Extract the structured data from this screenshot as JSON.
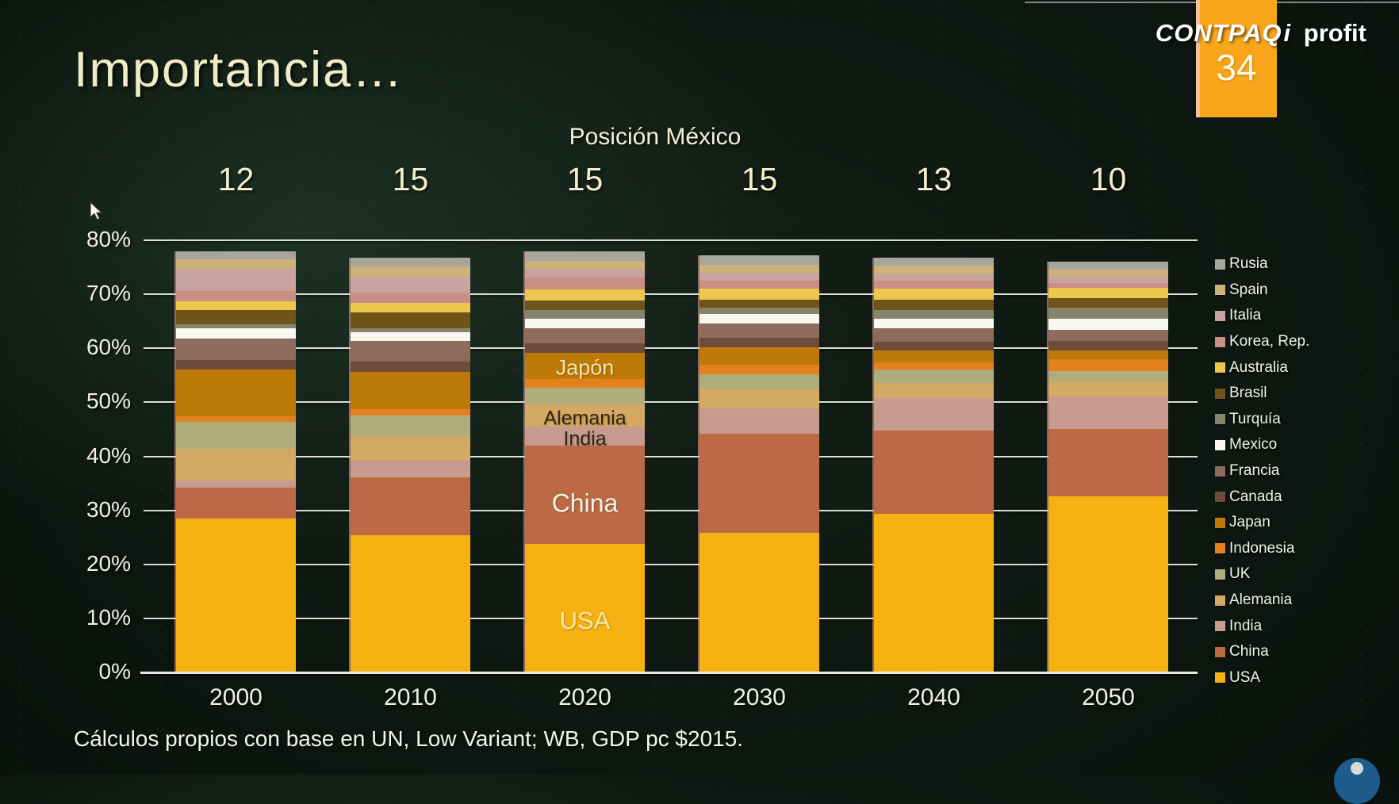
{
  "slide": {
    "title": "Importancia…",
    "footer": "Cálculos propios con base en UN, Low Variant; WB, GDP pc $2015."
  },
  "logo": {
    "brand": "CONTPAQ",
    "brand_i": "i",
    "suffix": "profit",
    "badge": "34",
    "badge_color": "#F9A61C"
  },
  "chart_data": {
    "type": "bar",
    "stacked": true,
    "title": "Posición México",
    "categories": [
      "2000",
      "2010",
      "2020",
      "2030",
      "2040",
      "2050"
    ],
    "position_labels": [
      "12",
      "15",
      "15",
      "15",
      "13",
      "10"
    ],
    "unit": "percent of world GDP",
    "ylim": [
      0,
      80
    ],
    "yticks": [
      "0%",
      "10%",
      "20%",
      "30%",
      "40%",
      "50%",
      "60%",
      "70%",
      "80%"
    ],
    "grid": true,
    "legend_position": "right",
    "legend_order_top_to_bottom": [
      "Rusia",
      "Spain",
      "Italia",
      "Korea, Rep.",
      "Australia",
      "Brasil",
      "Turquía",
      "Mexico",
      "Francia",
      "Canada",
      "Japan",
      "Indonesia",
      "UK",
      "Alemania",
      "India",
      "China",
      "USA"
    ],
    "series_bottom_to_top": [
      {
        "name": "USA",
        "color": "#F7B011",
        "values": [
          28.4,
          25.2,
          23.7,
          25.7,
          29.2,
          32.4
        ]
      },
      {
        "name": "China",
        "color": "#BC6A45",
        "values": [
          5.6,
          10.8,
          18.2,
          18.4,
          15.4,
          12.5
        ]
      },
      {
        "name": "India",
        "color": "#C79B8E",
        "values": [
          1.4,
          3.2,
          3.4,
          4.7,
          6.1,
          6.0
        ]
      },
      {
        "name": "Alemania",
        "color": "#D4A963",
        "values": [
          5.9,
          4.4,
          4.1,
          3.4,
          2.7,
          2.8
        ]
      },
      {
        "name": "UK",
        "color": "#B0AD7C",
        "values": [
          5.0,
          3.8,
          3.2,
          2.9,
          2.5,
          2.0
        ]
      },
      {
        "name": "Indonesia",
        "color": "#E2811E",
        "values": [
          0.9,
          1.2,
          1.5,
          1.7,
          1.4,
          2.2
        ]
      },
      {
        "name": "Japan",
        "color": "#BE7A06",
        "values": [
          8.7,
          6.9,
          4.9,
          3.3,
          2.1,
          1.6
        ]
      },
      {
        "name": "Canada",
        "color": "#6E4C3C",
        "values": [
          1.8,
          1.9,
          1.7,
          1.7,
          1.7,
          1.7
        ]
      },
      {
        "name": "Francia",
        "color": "#8D6C5E",
        "values": [
          4.0,
          3.8,
          2.9,
          2.7,
          2.5,
          2.1
        ]
      },
      {
        "name": "Mexico",
        "color": "#F8F8F0",
        "values": [
          1.9,
          1.7,
          1.7,
          1.7,
          1.7,
          2.0
        ]
      },
      {
        "name": "Turquía",
        "color": "#85856B",
        "values": [
          0.7,
          0.7,
          1.6,
          1.2,
          1.7,
          2.1
        ]
      },
      {
        "name": "Brasil",
        "color": "#6F5519",
        "values": [
          2.7,
          2.9,
          1.8,
          1.5,
          1.9,
          1.7
        ]
      },
      {
        "name": "Australia",
        "color": "#EDC84D",
        "values": [
          1.5,
          1.7,
          2.0,
          2.0,
          2.0,
          1.9
        ]
      },
      {
        "name": "Korea, Rep.",
        "color": "#C98F85",
        "values": [
          2.0,
          1.9,
          2.2,
          1.4,
          1.5,
          1.0
        ]
      },
      {
        "name": "Italia",
        "color": "#C9A49E",
        "values": [
          4.0,
          3.0,
          1.7,
          1.5,
          1.2,
          1.2
        ]
      },
      {
        "name": "Spain",
        "color": "#CDB27C",
        "values": [
          1.8,
          1.9,
          1.5,
          1.5,
          1.5,
          1.2
        ]
      },
      {
        "name": "Rusia",
        "color": "#A6A69A",
        "values": [
          1.5,
          1.6,
          1.7,
          1.8,
          1.5,
          1.5
        ]
      }
    ],
    "bar_annotations": [
      {
        "category": "2020",
        "text": "Japón",
        "pct": 56.6,
        "color": "#F2E3AC",
        "size": 27
      },
      {
        "category": "2020",
        "text": "Alemania",
        "pct": 47.3,
        "color": "#342410",
        "size": 25
      },
      {
        "category": "2020",
        "text": "India",
        "pct": 43.5,
        "color": "#342410",
        "size": 25
      },
      {
        "category": "2020",
        "text": "China",
        "pct": 31.5,
        "color": "#F7F3E2",
        "size": 32
      },
      {
        "category": "2020",
        "text": "USA",
        "pct": 9.8,
        "color": "#F6E8A6",
        "size": 31
      }
    ]
  }
}
